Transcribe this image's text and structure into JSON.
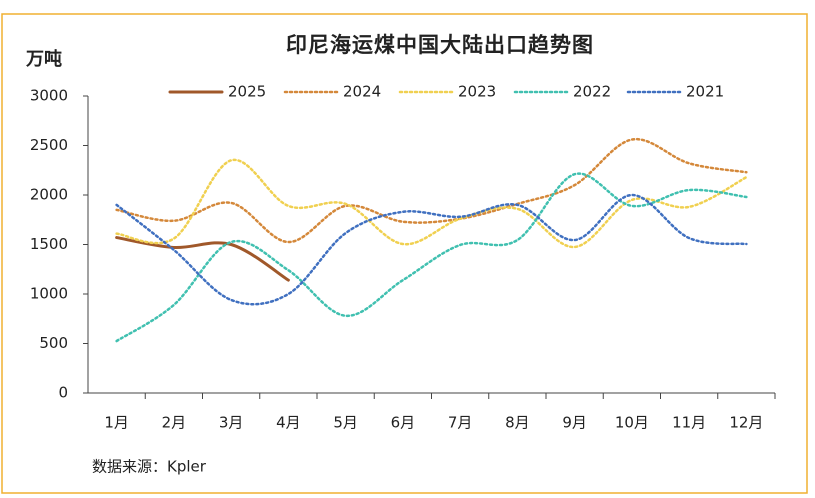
{
  "chart_data": {
    "type": "line",
    "title": "印尼海运煤中国大陆出口趋势图",
    "y_label": "万吨",
    "source": "数据来源：Kpler",
    "categories": [
      "1月",
      "2月",
      "3月",
      "4月",
      "5月",
      "6月",
      "7月",
      "8月",
      "9月",
      "10月",
      "11月",
      "12月"
    ],
    "ylim": [
      0,
      3000
    ],
    "yticks": [
      0,
      500,
      1000,
      1500,
      2000,
      2500,
      3000
    ],
    "grid": false,
    "series": [
      {
        "name": "2025",
        "color": "#a0582a",
        "dash": "solid",
        "values": [
          1570,
          1470,
          1500,
          1140,
          null,
          null,
          null,
          null,
          null,
          null,
          null,
          null
        ]
      },
      {
        "name": "2024",
        "color": "#d4883a",
        "dash": "dotted",
        "values": [
          1850,
          1740,
          1920,
          1525,
          1890,
          1730,
          1760,
          1910,
          2100,
          2560,
          2320,
          2230
        ]
      },
      {
        "name": "2023",
        "color": "#f0d050",
        "dash": "dotted",
        "values": [
          1610,
          1560,
          2350,
          1890,
          1910,
          1505,
          1760,
          1860,
          1475,
          1950,
          1880,
          2180
        ]
      },
      {
        "name": "2022",
        "color": "#40c0b0",
        "dash": "dotted",
        "values": [
          525,
          890,
          1525,
          1240,
          780,
          1140,
          1495,
          1545,
          2210,
          1890,
          2050,
          1980
        ]
      },
      {
        "name": "2021",
        "color": "#4070c0",
        "dash": "dotted",
        "values": [
          1900,
          1445,
          940,
          1000,
          1615,
          1830,
          1780,
          1900,
          1545,
          2000,
          1565,
          1505
        ]
      }
    ]
  }
}
